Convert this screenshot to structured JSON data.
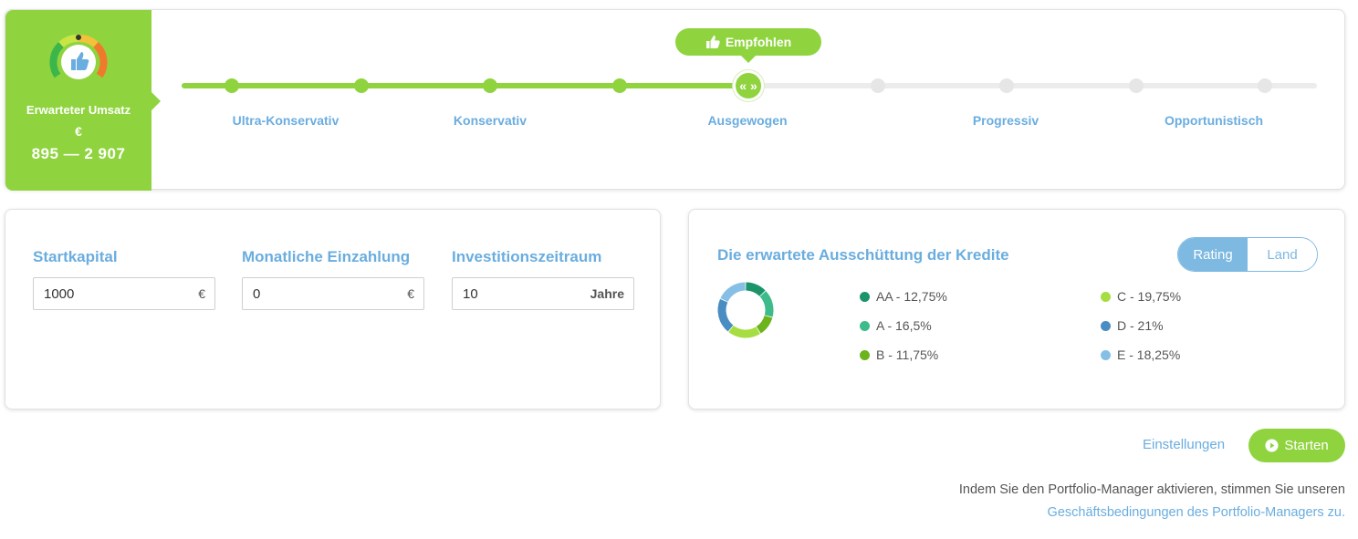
{
  "revenue": {
    "label": "Erwarteter Umsatz",
    "currency": "€",
    "range": "895 — 2 907"
  },
  "risk_slider": {
    "recommended_label": "Empfohlen",
    "handle_symbol": "« »",
    "selected_level": "Ausgewogen",
    "selected_step": 5,
    "steps_total": 9,
    "levels": [
      "Ultra-Konservativ",
      "Konservativ",
      "Ausgewogen",
      "Progressiv",
      "Opportunistisch"
    ]
  },
  "inputs": {
    "start_capital": {
      "label": "Startkapital",
      "value": "1000",
      "unit": "€"
    },
    "monthly_deposit": {
      "label": "Monatliche Einzahlung",
      "value": "0",
      "unit": "€"
    },
    "investment_period": {
      "label": "Investitionszeitraum",
      "value": "10",
      "unit": "Jahre"
    }
  },
  "distribution": {
    "title": "Die erwartete Ausschüttung der Kredite",
    "toggle": {
      "active": "Rating",
      "inactive": "Land"
    },
    "legend": [
      {
        "label": "AA - 12,75%",
        "value": 12.75,
        "color": "#1a9468"
      },
      {
        "label": "A - 16,5%",
        "value": 16.5,
        "color": "#3dbb8a"
      },
      {
        "label": "B - 11,75%",
        "value": 11.75,
        "color": "#6db31c"
      },
      {
        "label": "C - 19,75%",
        "value": 19.75,
        "color": "#a6dd42"
      },
      {
        "label": "D - 21%",
        "value": 21,
        "color": "#4a8dc2"
      },
      {
        "label": "E - 18,25%",
        "value": 18.25,
        "color": "#86bfe6"
      }
    ]
  },
  "footer": {
    "settings_label": "Einstellungen",
    "start_label": "Starten",
    "terms_text": "Indem Sie den Portfolio-Manager aktivieren, stimmen Sie unseren",
    "terms_link": "Geschäftsbedingungen des Portfolio-Managers zu."
  },
  "colors": {
    "accent_green": "#8fd43f",
    "accent_blue": "#6aaddf"
  },
  "icons": {
    "gauge": "thumbs-up-gauge-icon",
    "recommended": "thumbs-up-icon",
    "start": "play-circle-icon"
  }
}
